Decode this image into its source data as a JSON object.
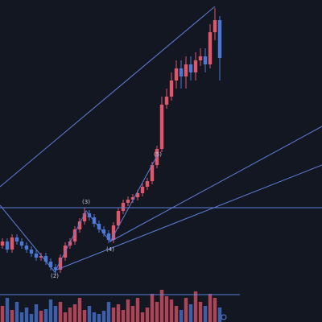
{
  "chart_data": {
    "type": "candlestick",
    "annotations": [
      "(2)",
      "(3)",
      "(4)",
      "(5)"
    ],
    "up_color": "#e2566a",
    "down_color": "#4a78d8",
    "ylim": [
      0,
      400
    ],
    "vlim": [
      0,
      40
    ],
    "open": [
      95,
      100,
      90,
      105,
      100,
      95,
      90,
      85,
      80,
      82,
      75,
      68,
      65,
      80,
      95,
      100,
      115,
      125,
      135,
      130,
      122,
      115,
      110,
      102,
      120,
      138,
      148,
      152,
      155,
      160,
      168,
      175,
      195,
      215,
      270,
      280,
      300,
      315,
      305,
      320,
      310,
      325,
      330,
      320,
      360,
      375
    ],
    "high": [
      104,
      104,
      109,
      109,
      104,
      99,
      94,
      89,
      86,
      86,
      79,
      72,
      84,
      99,
      104,
      119,
      129,
      142,
      139,
      134,
      126,
      119,
      114,
      124,
      142,
      152,
      156,
      159,
      164,
      172,
      179,
      199,
      219,
      280,
      290,
      310,
      325,
      325,
      330,
      330,
      335,
      340,
      340,
      370,
      390,
      380
    ],
    "low": [
      91,
      86,
      86,
      96,
      91,
      86,
      81,
      76,
      76,
      71,
      64,
      58,
      61,
      76,
      91,
      96,
      111,
      121,
      126,
      118,
      111,
      106,
      98,
      98,
      116,
      134,
      144,
      148,
      151,
      156,
      164,
      171,
      191,
      211,
      265,
      275,
      290,
      290,
      290,
      300,
      300,
      318,
      310,
      315,
      350,
      300
    ],
    "close": [
      100,
      90,
      105,
      100,
      95,
      90,
      85,
      80,
      82,
      75,
      68,
      65,
      80,
      95,
      100,
      115,
      125,
      135,
      130,
      122,
      115,
      110,
      102,
      120,
      138,
      148,
      152,
      155,
      160,
      168,
      175,
      195,
      215,
      270,
      280,
      300,
      315,
      305,
      320,
      310,
      325,
      330,
      320,
      360,
      375,
      328
    ],
    "volume": [
      20,
      30,
      15,
      25,
      12,
      18,
      10,
      22,
      14,
      16,
      28,
      20,
      25,
      12,
      18,
      22,
      30,
      15,
      20,
      12,
      10,
      14,
      25,
      18,
      22,
      15,
      28,
      20,
      30,
      12,
      18,
      35,
      25,
      40,
      32,
      28,
      20,
      15,
      30,
      22,
      38,
      25,
      20,
      35,
      30,
      18
    ]
  }
}
